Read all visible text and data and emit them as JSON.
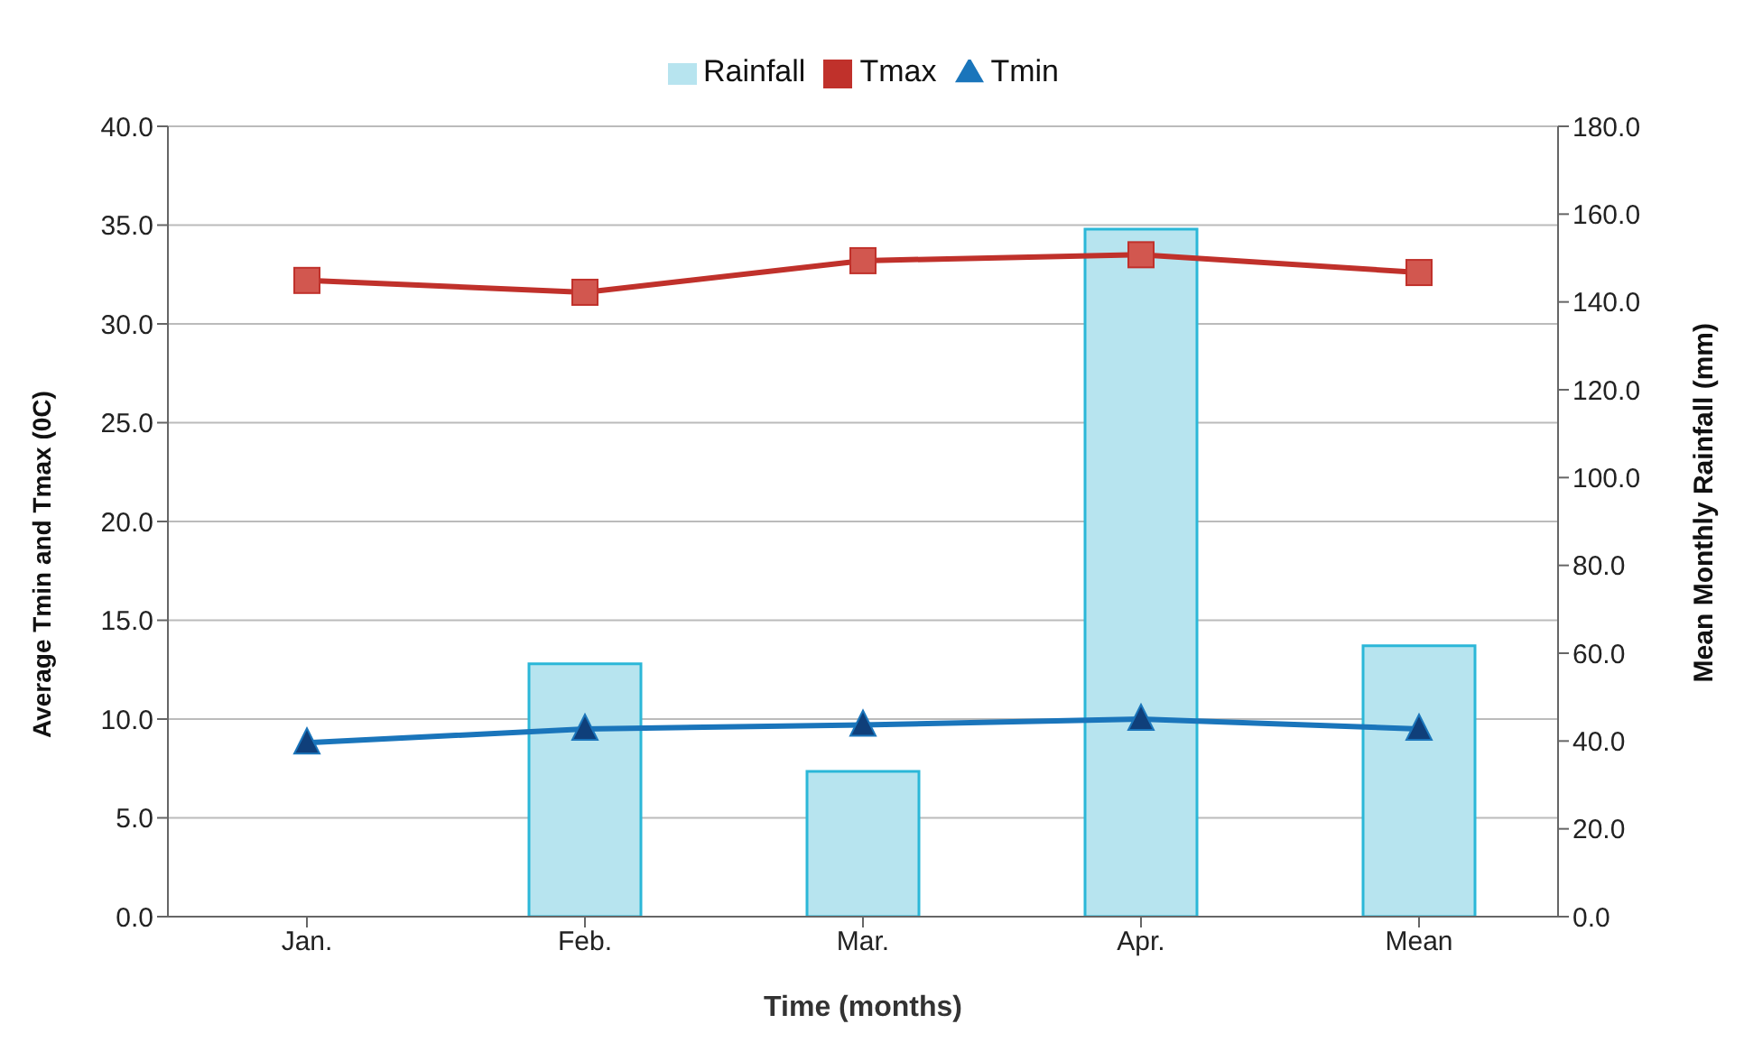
{
  "chart_data": {
    "type": "line",
    "xlabel": "Time (months)",
    "ylabel": "Average Tmin and Tmax (0C)",
    "y2label": "Mean Monthly Rainfall (mm)",
    "categories": [
      "Jan.",
      "Feb.",
      "Mar.",
      "Apr.",
      "Mean"
    ],
    "series": [
      {
        "name": "Rainfall",
        "type": "bar",
        "axis": "y2",
        "color": "#b7e4ef",
        "values": [
          0,
          57.6,
          33.1,
          156.6,
          61.7
        ]
      },
      {
        "name": "Tmax",
        "color": "#c0312b",
        "marker": "square",
        "values": [
          32.2,
          31.6,
          33.2,
          33.5,
          32.6
        ]
      },
      {
        "name": "Tmin",
        "color": "#1a75bb",
        "marker": "triangle",
        "values": [
          8.8,
          9.5,
          9.7,
          10.0,
          9.5
        ]
      }
    ],
    "ylim": [
      0,
      40
    ],
    "yticks": [
      {
        "value": 0,
        "label": "0.0"
      },
      {
        "value": 5,
        "label": "5.0"
      },
      {
        "value": 10,
        "label": "10.0"
      },
      {
        "value": 15,
        "label": "15.0"
      },
      {
        "value": 20,
        "label": "20.0"
      },
      {
        "value": 25,
        "label": "25.0"
      },
      {
        "value": 30,
        "label": "30.0"
      },
      {
        "value": 35,
        "label": "35.0"
      },
      {
        "value": 40,
        "label": "40.0"
      }
    ],
    "y2lim": [
      0,
      180
    ],
    "y2ticks": [
      {
        "value": 0,
        "label": "0.0"
      },
      {
        "value": 20,
        "label": "20.0"
      },
      {
        "value": 40,
        "label": "40.0"
      },
      {
        "value": 60,
        "label": "60.0"
      },
      {
        "value": 80,
        "label": "80.0"
      },
      {
        "value": 100,
        "label": "100.0"
      },
      {
        "value": 120,
        "label": "120.0"
      },
      {
        "value": 140,
        "label": "140.0"
      },
      {
        "value": 160,
        "label": "160.0"
      },
      {
        "value": 180,
        "label": "180.0"
      }
    ],
    "grid": "y",
    "legend": "top"
  }
}
